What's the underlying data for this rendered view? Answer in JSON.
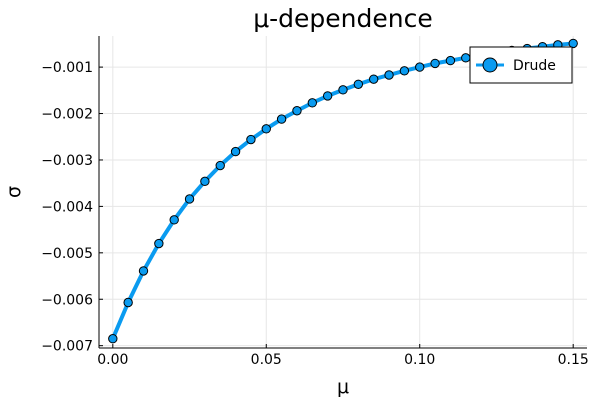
{
  "chart_data": {
    "type": "line",
    "title": "μ-dependence",
    "xlabel": "μ",
    "ylabel": "σ",
    "xlim": [
      -0.0045,
      0.1545
    ],
    "ylim": [
      -0.00705,
      -0.00033
    ],
    "grid": true,
    "legend_position": "top-right",
    "xticks": [
      {
        "value": 0.0,
        "label": "0.00"
      },
      {
        "value": 0.05,
        "label": "0.05"
      },
      {
        "value": 0.1,
        "label": "0.10"
      },
      {
        "value": 0.15,
        "label": "0.15"
      }
    ],
    "yticks": [
      {
        "value": -0.001,
        "label": "−0.001"
      },
      {
        "value": -0.002,
        "label": "−0.002"
      },
      {
        "value": -0.003,
        "label": "−0.003"
      },
      {
        "value": -0.004,
        "label": "−0.004"
      },
      {
        "value": -0.005,
        "label": "−0.005"
      },
      {
        "value": -0.006,
        "label": "−0.006"
      },
      {
        "value": -0.007,
        "label": "−0.007"
      }
    ],
    "series": [
      {
        "name": "Drude",
        "color": "#0a9bf0",
        "marker": "circle",
        "x": [
          0.0,
          0.005,
          0.01,
          0.015,
          0.02,
          0.025,
          0.03,
          0.035,
          0.04,
          0.045,
          0.05,
          0.055,
          0.06,
          0.065,
          0.07,
          0.075,
          0.08,
          0.085,
          0.09,
          0.095,
          0.1,
          0.105,
          0.11,
          0.115,
          0.12,
          0.125,
          0.13,
          0.135,
          0.14,
          0.145,
          0.15
        ],
        "y": [
          -0.00685,
          -0.00607,
          -0.00539,
          -0.0048,
          -0.00429,
          -0.00384,
          -0.00346,
          -0.00312,
          -0.00282,
          -0.00256,
          -0.00233,
          -0.00212,
          -0.00194,
          -0.00177,
          -0.00162,
          -0.00149,
          -0.00137,
          -0.00126,
          -0.00117,
          -0.00108,
          -0.001,
          -0.00092,
          -0.00086,
          -0.0008,
          -0.00074,
          -0.00069,
          -0.00064,
          -0.0006,
          -0.00056,
          -0.00052,
          -0.00049
        ]
      }
    ]
  }
}
